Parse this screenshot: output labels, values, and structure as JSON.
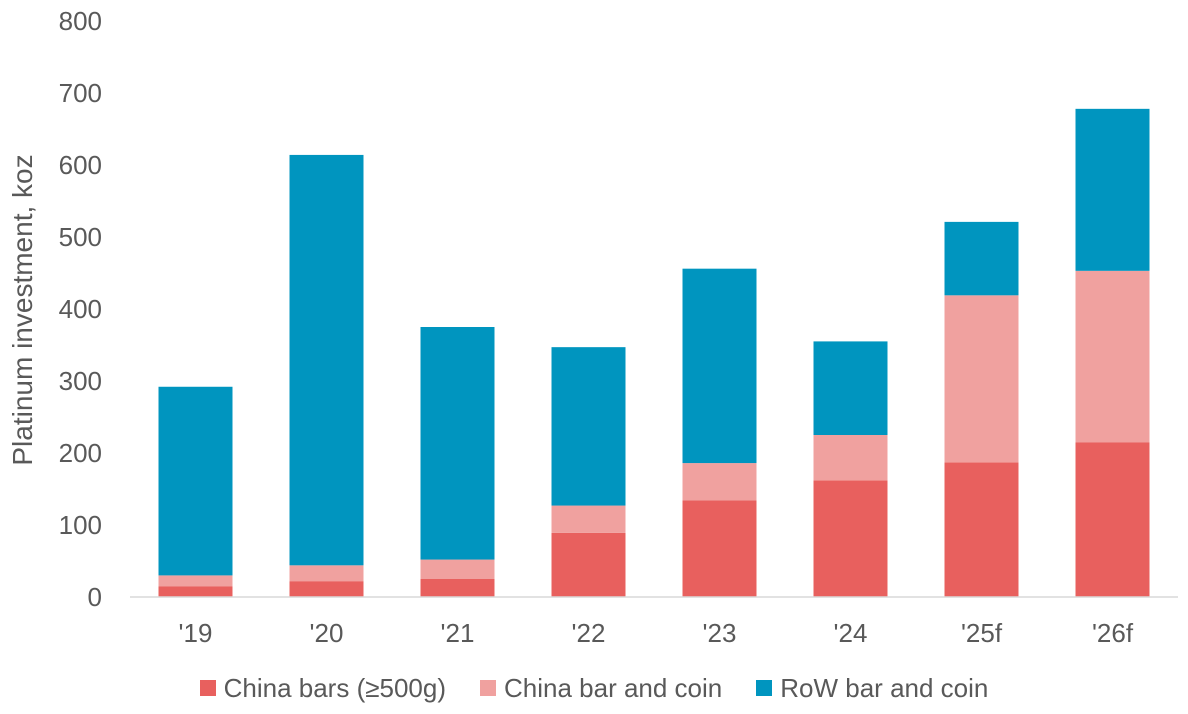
{
  "chart_data": {
    "type": "bar",
    "stacked": true,
    "title": "",
    "xlabel": "",
    "ylabel": "Platinum investment, koz",
    "ylim": [
      0,
      800
    ],
    "yticks": [
      0,
      100,
      200,
      300,
      400,
      500,
      600,
      700,
      800
    ],
    "grid": false,
    "legend_position": "bottom",
    "categories": [
      "'19",
      "'20",
      "'21",
      "'22",
      "'23",
      "'24",
      "'25f",
      "'26f"
    ],
    "series": [
      {
        "name": "China bars (≥500g)",
        "color": "#e8605e",
        "values": [
          15,
          22,
          25,
          89,
          134,
          162,
          187,
          215
        ]
      },
      {
        "name": "China bar and coin",
        "color": "#f0a19f",
        "values": [
          15,
          22,
          27,
          38,
          52,
          63,
          232,
          238
        ]
      },
      {
        "name": "RoW bar and coin",
        "color": "#0095bf",
        "values": [
          262,
          570,
          323,
          220,
          270,
          130,
          102,
          225
        ]
      }
    ]
  },
  "legend": {
    "items": [
      {
        "label": "China bars (≥500g)",
        "color": "#e8605e"
      },
      {
        "label": "China bar and coin",
        "color": "#f0a19f"
      },
      {
        "label": "RoW bar and coin",
        "color": "#0095bf"
      }
    ]
  }
}
